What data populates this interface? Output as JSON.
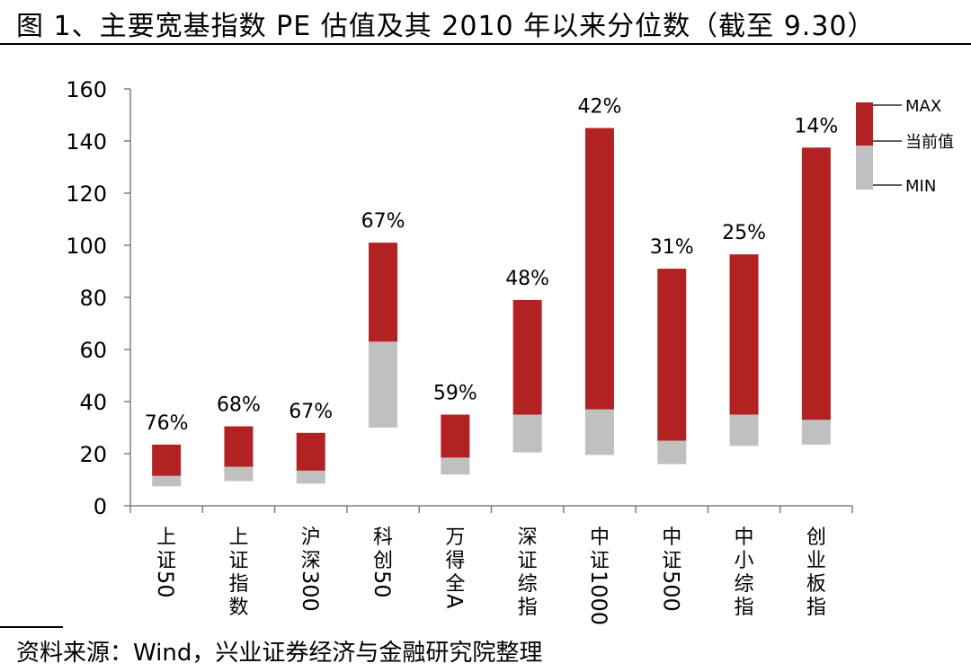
{
  "title": "图 1、主要宽基指数 PE 估值及其 2010 年以来分位数（截至 9.30）",
  "source": "资料来源：Wind，兴业证券经济与金融研究院整理",
  "chart_data": {
    "type": "bar",
    "title": "主要宽基指数 PE 估值及其 2010 年以来分位数（截至 9.30）",
    "categories": [
      "上证50",
      "上证指数",
      "沪深300",
      "科创50",
      "万得全A",
      "深证综指",
      "中证1000",
      "中证500",
      "中小综指",
      "创业板指"
    ],
    "min": [
      7.5,
      9.5,
      8.5,
      30,
      12,
      20.5,
      19.5,
      16,
      23,
      23.5
    ],
    "current": [
      11.5,
      15,
      13.5,
      63,
      18.5,
      35,
      37,
      25,
      35,
      33
    ],
    "max": [
      23.5,
      30.5,
      28,
      101,
      35,
      79,
      145,
      91,
      96.5,
      137.5
    ],
    "percentile_labels": [
      "76%",
      "68%",
      "67%",
      "67%",
      "59%",
      "48%",
      "42%",
      "31%",
      "25%",
      "14%"
    ],
    "y_ticks": [
      0,
      20,
      40,
      60,
      80,
      100,
      120,
      140,
      160
    ],
    "ylim": [
      0,
      160
    ],
    "xlabel": "",
    "ylabel": "",
    "legend": {
      "position": "top-right",
      "labels": [
        "MAX",
        "当前值",
        "MIN"
      ]
    },
    "colors": {
      "upper": "#B22222",
      "lower": "#C0C0C0",
      "axis": "#808080",
      "text": "#000000"
    }
  }
}
